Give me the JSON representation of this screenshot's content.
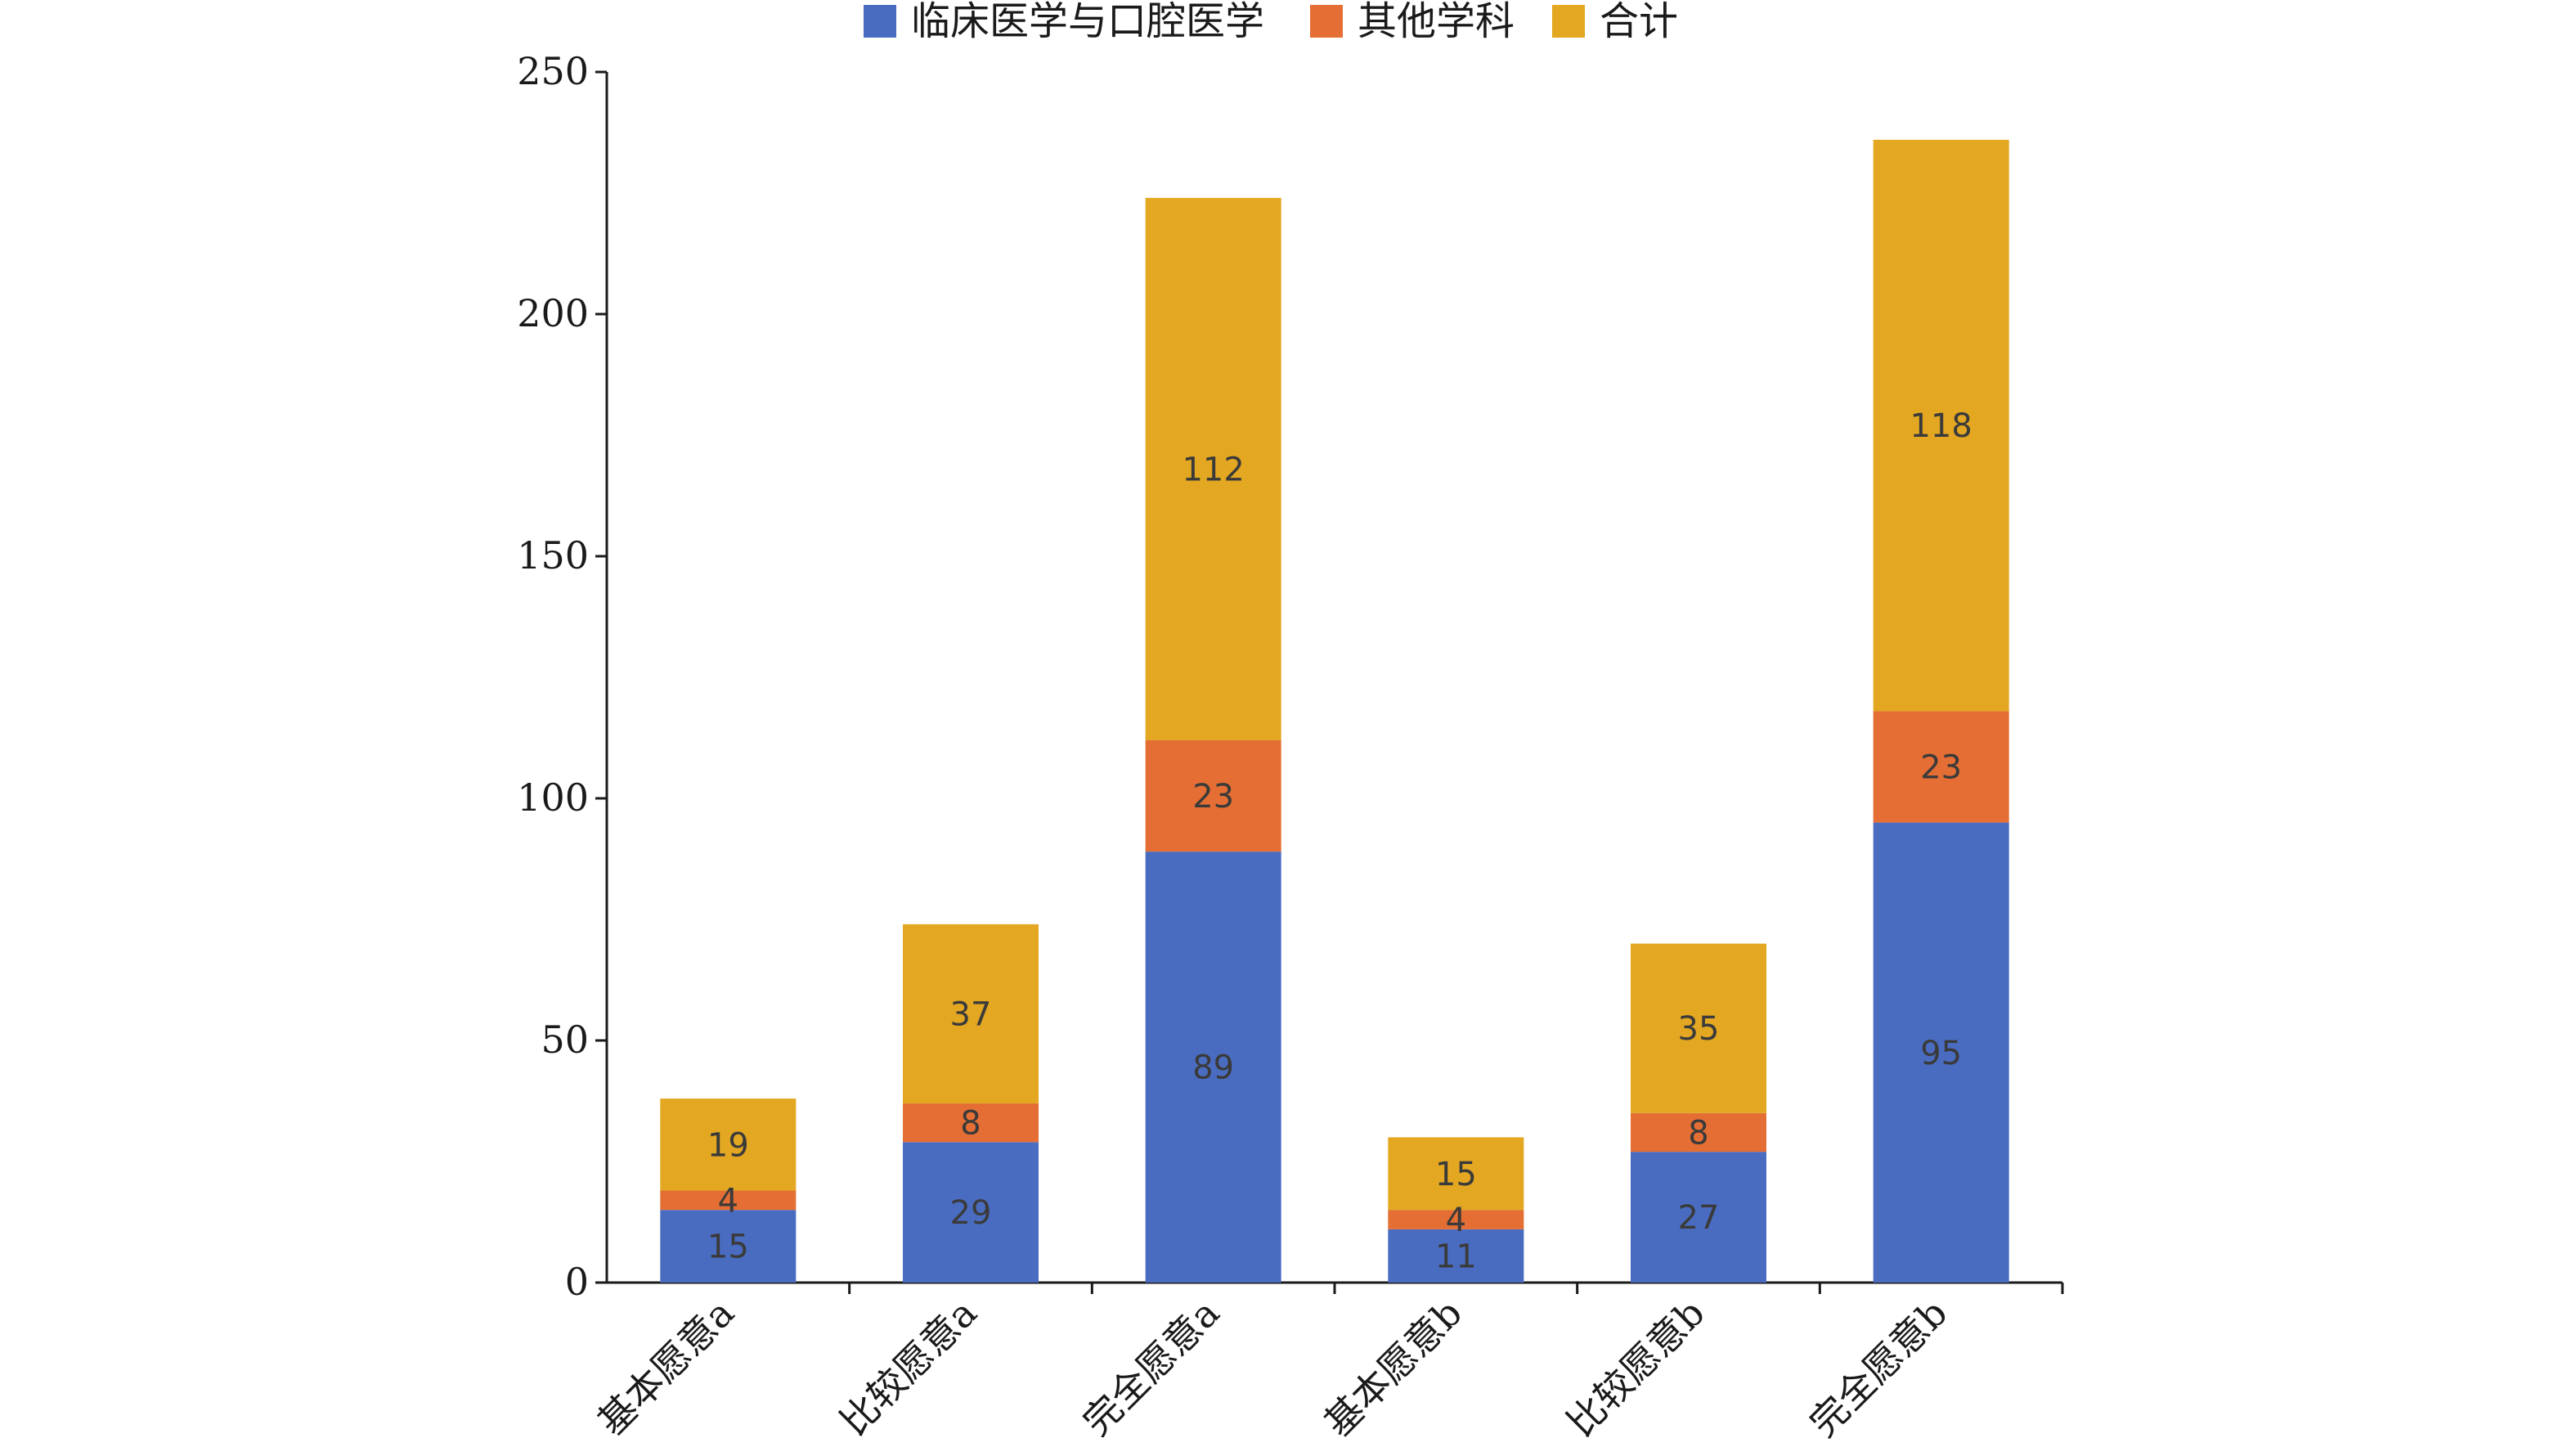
{
  "chart_data": {
    "type": "bar",
    "stacked": true,
    "categories": [
      "基本愿意a",
      "比较愿意a",
      "完全愿意a",
      "基本愿意b",
      "比较愿意b",
      "完全愿意b"
    ],
    "series": [
      {
        "name": "临床医学与口腔医学",
        "color": "#4a6cc0",
        "values": [
          15,
          29,
          89,
          11,
          27,
          95
        ]
      },
      {
        "name": "其他学科",
        "color": "#e46e34",
        "values": [
          4,
          8,
          23,
          4,
          8,
          23
        ]
      },
      {
        "name": "合计",
        "color": "#e3a722",
        "values": [
          19,
          37,
          112,
          15,
          35,
          118
        ]
      }
    ],
    "ylim": [
      0,
      250
    ],
    "yticks": [
      0,
      50,
      100,
      150,
      200,
      250
    ],
    "legend": "top-center",
    "grid": false
  }
}
